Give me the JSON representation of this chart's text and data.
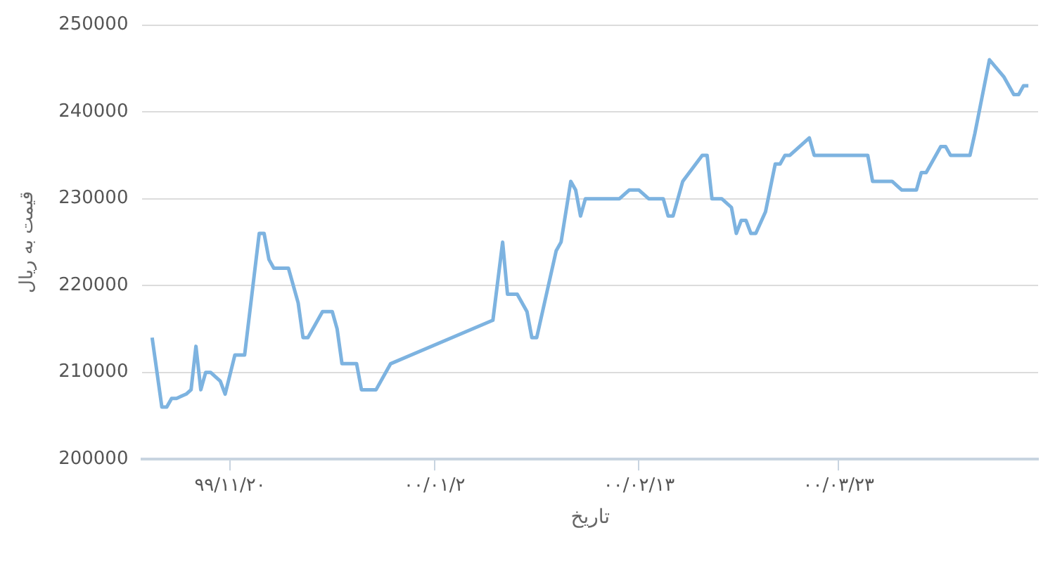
{
  "chart_data": {
    "type": "line",
    "xlabel": "تاریخ",
    "ylabel": "قیمت به ریال",
    "color": "#7db3e0",
    "x": [
      "--01-23",
      "--01-25",
      "--01-26",
      "--01-27",
      "--01-28",
      "--01-30",
      "--01-31",
      "--02-01",
      "--02-02",
      "--02-03",
      "--02-04",
      "--02-06",
      "--02-07",
      "--02-09",
      "--02-11",
      "--02-14",
      "--02-15",
      "--02-16",
      "--02-17",
      "--02-20",
      "--02-22",
      "--02-23",
      "--02-24",
      "--02-27",
      "--03-01",
      "--03-02",
      "--03-03",
      "--03-06",
      "--03-07",
      "--03-10",
      "--03-13",
      "--04-03",
      "--04-05",
      "--04-06",
      "--04-08",
      "--04-10",
      "--04-11",
      "--04-12",
      "--04-16",
      "--04-17",
      "--04-19",
      "--04-20",
      "--04-21",
      "--04-22",
      "--04-29",
      "--05-01",
      "--05-03",
      "--05-05",
      "--05-08",
      "--05-09",
      "--05-10",
      "--05-12",
      "--05-16",
      "--05-17",
      "--05-18",
      "--05-20",
      "--05-22",
      "--05-23",
      "--05-24",
      "--05-25",
      "--05-26",
      "--05-27",
      "--05-29",
      "--05-31",
      "--06-01",
      "--06-02",
      "--06-03",
      "--06-07",
      "--06-08",
      "--06-19",
      "--06-20",
      "--06-24",
      "--06-26",
      "--06-29",
      "--06-30",
      "--07-01",
      "--07-04",
      "--07-05",
      "--07-06",
      "--07-10",
      "--07-11",
      "--07-14",
      "--07-17",
      "--07-19",
      "--07-20",
      "--07-21",
      "--07-22"
    ],
    "values": [
      214000,
      206000,
      206000,
      207000,
      207000,
      207500,
      208000,
      213000,
      208000,
      210000,
      210000,
      209000,
      207500,
      212000,
      212000,
      226000,
      226000,
      223000,
      222000,
      222000,
      218000,
      214000,
      214000,
      217000,
      217000,
      215000,
      211000,
      211000,
      208000,
      208000,
      211000,
      216000,
      225000,
      219000,
      219000,
      217000,
      214000,
      214000,
      224000,
      225000,
      232000,
      231000,
      228000,
      230000,
      230000,
      231000,
      231000,
      230000,
      230000,
      228000,
      228000,
      232000,
      235000,
      235000,
      230000,
      230000,
      229000,
      226000,
      227500,
      227500,
      226000,
      226000,
      228500,
      234000,
      234000,
      235000,
      235000,
      237000,
      235000,
      235000,
      232000,
      232000,
      231000,
      231000,
      233000,
      233000,
      236000,
      236000,
      235000,
      235000,
      237500,
      246000,
      244000,
      242000,
      242000,
      243000,
      243000
    ],
    "xlim": [
      "--01-21",
      "--07-24"
    ],
    "xticks": [
      {
        "value": "--02-08",
        "label": "۹۹/۱۱/۲۰"
      },
      {
        "value": "--03-22",
        "label": "۰۰/۰۱/۲"
      },
      {
        "value": "--05-03",
        "label": "۰۰/۰۲/۱۳"
      },
      {
        "value": "--06-13",
        "label": "۰۰/۰۳/۲۳"
      }
    ],
    "ylim": [
      200000,
      250000
    ],
    "yticks": [
      200000,
      210000,
      220000,
      230000,
      240000,
      250000
    ],
    "grid": "y",
    "legend": false,
    "marker": "none",
    "line_style": "solid"
  }
}
